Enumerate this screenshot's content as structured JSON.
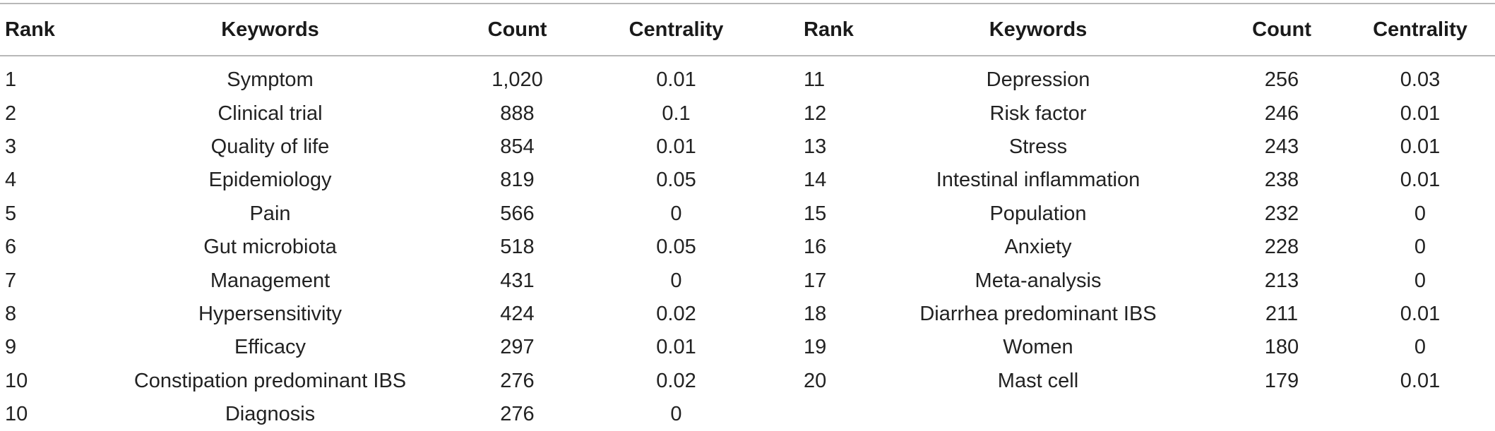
{
  "table": {
    "headers": [
      "Rank",
      "Keywords",
      "Count",
      "Centrality",
      "Rank",
      "Keywords",
      "Count",
      "Centrality"
    ],
    "rows": [
      [
        "1",
        "Symptom",
        "1,020",
        "0.01",
        "11",
        "Depression",
        "256",
        "0.03"
      ],
      [
        "2",
        "Clinical trial",
        "888",
        "0.1",
        "12",
        "Risk factor",
        "246",
        "0.01"
      ],
      [
        "3",
        "Quality of life",
        "854",
        "0.01",
        "13",
        "Stress",
        "243",
        "0.01"
      ],
      [
        "4",
        "Epidemiology",
        "819",
        "0.05",
        "14",
        "Intestinal inflammation",
        "238",
        "0.01"
      ],
      [
        "5",
        "Pain",
        "566",
        "0",
        "15",
        "Population",
        "232",
        "0"
      ],
      [
        "6",
        "Gut microbiota",
        "518",
        "0.05",
        "16",
        "Anxiety",
        "228",
        "0"
      ],
      [
        "7",
        "Management",
        "431",
        "0",
        "17",
        "Meta-analysis",
        "213",
        "0"
      ],
      [
        "8",
        "Hypersensitivity",
        "424",
        "0.02",
        "18",
        "Diarrhea predominant IBS",
        "211",
        "0.01"
      ],
      [
        "9",
        "Efficacy",
        "297",
        "0.01",
        "19",
        "Women",
        "180",
        "0"
      ],
      [
        "10",
        "Constipation predominant IBS",
        "276",
        "0.02",
        "20",
        "Mast cell",
        "179",
        "0.01"
      ],
      [
        "10",
        "Diagnosis",
        "276",
        "0",
        "",
        "",
        "",
        ""
      ]
    ]
  }
}
